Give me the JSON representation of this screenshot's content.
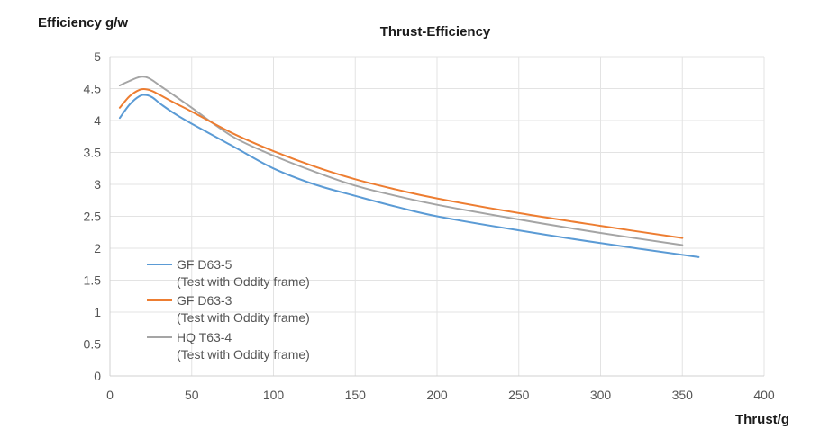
{
  "chart_data": {
    "type": "line",
    "title": "Thrust-Efficiency",
    "xlabel": "Thrust/g",
    "ylabel": "Efficiency g/w",
    "xlim": [
      0,
      400
    ],
    "ylim": [
      0,
      5
    ],
    "x_ticks": [
      "0",
      "50",
      "100",
      "150",
      "200",
      "250",
      "300",
      "350",
      "400"
    ],
    "y_ticks": [
      "0",
      "0.5",
      "1",
      "1.5",
      "2",
      "2.5",
      "3",
      "3.5",
      "4",
      "4.5",
      "5"
    ],
    "grid": true,
    "legend_position": "bottom-left",
    "series": [
      {
        "name": "GF D63-5",
        "note": "(Test with Oddity frame)",
        "color": "#5B9BD5",
        "x": [
          6,
          12,
          18,
          22,
          26,
          32,
          40,
          50,
          75,
          100,
          125,
          150,
          175,
          200,
          250,
          300,
          360
        ],
        "y": [
          4.04,
          4.25,
          4.38,
          4.4,
          4.36,
          4.24,
          4.1,
          3.95,
          3.6,
          3.25,
          3.0,
          2.82,
          2.65,
          2.5,
          2.28,
          2.08,
          1.86
        ]
      },
      {
        "name": "GF D63-3",
        "note": "(Test with Oddity frame)",
        "color": "#ED7D31",
        "x": [
          6,
          12,
          18,
          22,
          26,
          32,
          40,
          50,
          75,
          100,
          125,
          150,
          175,
          200,
          250,
          300,
          350
        ],
        "y": [
          4.2,
          4.38,
          4.48,
          4.49,
          4.46,
          4.38,
          4.27,
          4.14,
          3.8,
          3.52,
          3.28,
          3.08,
          2.92,
          2.78,
          2.55,
          2.35,
          2.16
        ]
      },
      {
        "name": "HQ T63-4",
        "note": "(Test with Oddity frame)",
        "color": "#A5A5A5",
        "x": [
          6,
          12,
          18,
          22,
          26,
          32,
          40,
          50,
          75,
          100,
          125,
          150,
          175,
          200,
          250,
          300,
          350
        ],
        "y": [
          4.55,
          4.62,
          4.68,
          4.68,
          4.63,
          4.52,
          4.38,
          4.2,
          3.75,
          3.45,
          3.2,
          2.98,
          2.82,
          2.68,
          2.45,
          2.24,
          2.05
        ]
      }
    ]
  }
}
